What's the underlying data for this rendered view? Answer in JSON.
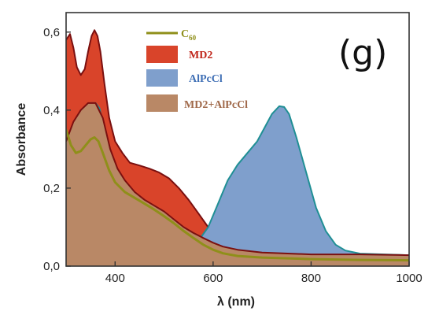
{
  "panel_label": "(g)",
  "chart_data": {
    "type": "area",
    "xlabel": "λ (nm)",
    "ylabel": "Absorbance",
    "xlim": [
      300,
      1000
    ],
    "ylim": [
      0.0,
      0.65
    ],
    "x_ticks": [
      400,
      600,
      800,
      1000
    ],
    "y_ticks": [
      0.0,
      0.2,
      0.4,
      0.6
    ],
    "x_tick_labels": [
      "400",
      "600",
      "800",
      "1000"
    ],
    "y_tick_labels": [
      "0,0",
      "0,2",
      "0,4",
      "0,6"
    ],
    "grid": false,
    "legend_position": "top-center",
    "series": [
      {
        "name": "MD2",
        "display": "filled-area",
        "fill_color": "#d9442a",
        "line_color": "#7a1010",
        "points": [
          [
            300,
            0.58
          ],
          [
            308,
            0.595
          ],
          [
            315,
            0.56
          ],
          [
            322,
            0.51
          ],
          [
            330,
            0.49
          ],
          [
            338,
            0.505
          ],
          [
            345,
            0.55
          ],
          [
            352,
            0.59
          ],
          [
            358,
            0.605
          ],
          [
            364,
            0.59
          ],
          [
            370,
            0.55
          ],
          [
            378,
            0.47
          ],
          [
            388,
            0.38
          ],
          [
            400,
            0.32
          ],
          [
            415,
            0.29
          ],
          [
            430,
            0.265
          ],
          [
            450,
            0.258
          ],
          [
            470,
            0.25
          ],
          [
            490,
            0.24
          ],
          [
            510,
            0.225
          ],
          [
            530,
            0.2
          ],
          [
            550,
            0.17
          ],
          [
            570,
            0.135
          ],
          [
            590,
            0.1
          ],
          [
            610,
            0.075
          ],
          [
            630,
            0.06
          ],
          [
            650,
            0.05
          ],
          [
            675,
            0.042
          ],
          [
            700,
            0.037
          ],
          [
            750,
            0.031
          ],
          [
            800,
            0.027
          ],
          [
            850,
            0.025
          ],
          [
            900,
            0.025
          ],
          [
            950,
            0.024
          ],
          [
            1000,
            0.024
          ]
        ]
      },
      {
        "name": "AlPcCl",
        "display": "filled-area",
        "fill_color": "#7f9fcc",
        "line_color": "#1f8f94",
        "points": [
          [
            300,
            0.29
          ],
          [
            310,
            0.31
          ],
          [
            320,
            0.34
          ],
          [
            330,
            0.375
          ],
          [
            340,
            0.405
          ],
          [
            350,
            0.418
          ],
          [
            360,
            0.418
          ],
          [
            368,
            0.405
          ],
          [
            375,
            0.37
          ],
          [
            382,
            0.3
          ],
          [
            390,
            0.22
          ],
          [
            400,
            0.15
          ],
          [
            415,
            0.1
          ],
          [
            430,
            0.075
          ],
          [
            450,
            0.06
          ],
          [
            470,
            0.048
          ],
          [
            490,
            0.038
          ],
          [
            510,
            0.033
          ],
          [
            530,
            0.035
          ],
          [
            550,
            0.045
          ],
          [
            570,
            0.065
          ],
          [
            590,
            0.1
          ],
          [
            610,
            0.16
          ],
          [
            630,
            0.22
          ],
          [
            650,
            0.26
          ],
          [
            670,
            0.29
          ],
          [
            690,
            0.32
          ],
          [
            705,
            0.355
          ],
          [
            720,
            0.39
          ],
          [
            735,
            0.41
          ],
          [
            745,
            0.408
          ],
          [
            755,
            0.39
          ],
          [
            770,
            0.33
          ],
          [
            790,
            0.24
          ],
          [
            810,
            0.15
          ],
          [
            830,
            0.09
          ],
          [
            850,
            0.055
          ],
          [
            870,
            0.04
          ],
          [
            900,
            0.032
          ],
          [
            950,
            0.03
          ],
          [
            1000,
            0.028
          ]
        ]
      },
      {
        "name": "MD2+AlPcCl",
        "display": "filled-area",
        "fill_color": "#b98866",
        "line_color": "#7a1010",
        "points": [
          [
            300,
            0.32
          ],
          [
            315,
            0.37
          ],
          [
            330,
            0.4
          ],
          [
            345,
            0.418
          ],
          [
            360,
            0.418
          ],
          [
            375,
            0.38
          ],
          [
            390,
            0.3
          ],
          [
            405,
            0.25
          ],
          [
            420,
            0.22
          ],
          [
            440,
            0.19
          ],
          [
            460,
            0.17
          ],
          [
            480,
            0.155
          ],
          [
            500,
            0.14
          ],
          [
            520,
            0.12
          ],
          [
            540,
            0.1
          ],
          [
            560,
            0.085
          ],
          [
            580,
            0.072
          ],
          [
            600,
            0.06
          ],
          [
            620,
            0.05
          ],
          [
            650,
            0.042
          ],
          [
            700,
            0.035
          ],
          [
            800,
            0.03
          ],
          [
            900,
            0.03
          ],
          [
            1000,
            0.028
          ]
        ]
      },
      {
        "name": "C60",
        "legend_main": "C",
        "legend_sub": "60",
        "display": "line",
        "line_color": "#8f8f1a",
        "points": [
          [
            300,
            0.35
          ],
          [
            310,
            0.31
          ],
          [
            320,
            0.29
          ],
          [
            330,
            0.295
          ],
          [
            340,
            0.31
          ],
          [
            350,
            0.325
          ],
          [
            358,
            0.33
          ],
          [
            366,
            0.32
          ],
          [
            375,
            0.29
          ],
          [
            388,
            0.245
          ],
          [
            400,
            0.215
          ],
          [
            420,
            0.19
          ],
          [
            440,
            0.175
          ],
          [
            460,
            0.16
          ],
          [
            480,
            0.145
          ],
          [
            500,
            0.128
          ],
          [
            520,
            0.11
          ],
          [
            540,
            0.09
          ],
          [
            560,
            0.072
          ],
          [
            580,
            0.055
          ],
          [
            600,
            0.042
          ],
          [
            620,
            0.033
          ],
          [
            650,
            0.026
          ],
          [
            700,
            0.022
          ],
          [
            800,
            0.018
          ],
          [
            900,
            0.016
          ],
          [
            1000,
            0.015
          ]
        ]
      }
    ]
  }
}
